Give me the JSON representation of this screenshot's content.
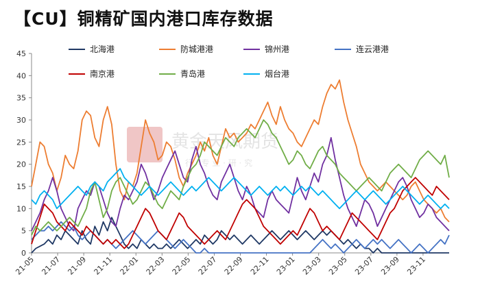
{
  "title": "【CU】铜精矿国内港口库存数据",
  "watermark": {
    "main": "黄金天风期货",
    "sub": "行 · 专 业 · 研 · 究"
  },
  "chart_data": {
    "type": "line",
    "title": "【CU】铜精矿国内港口库存数据",
    "xlabel": "",
    "ylabel": "",
    "ylim": [
      0,
      45
    ],
    "yticks": [
      0,
      5,
      10,
      15,
      20,
      25,
      30,
      35,
      40,
      45
    ],
    "x_tick_labels": [
      "21-05",
      "21-07",
      "21-09",
      "21-11",
      "22-01",
      "22-03",
      "22-05",
      "22-07",
      "22-09",
      "22-11",
      "23-01",
      "23-03",
      "23-05",
      "23-07",
      "23-09",
      "23-11"
    ],
    "x_start": "2021-05",
    "legend_position": "top",
    "grid": false,
    "series": [
      {
        "name": "北海港",
        "color": "#1f3864",
        "values": [
          0,
          1,
          1.5,
          2,
          3,
          2,
          4,
          3,
          5,
          4,
          3,
          2,
          5,
          3,
          2,
          6,
          4,
          7,
          5,
          8,
          6,
          4,
          2,
          1,
          2,
          1,
          3,
          2,
          1,
          2,
          1,
          1,
          2,
          1,
          2,
          3,
          2,
          1,
          2,
          3,
          2,
          4,
          3,
          2,
          3,
          5,
          4,
          3,
          4,
          3,
          2,
          3,
          4,
          3,
          2,
          3,
          4,
          5,
          4,
          3,
          4,
          5,
          4,
          3,
          4,
          5,
          4,
          3,
          4,
          5,
          4,
          5,
          4,
          3,
          2,
          3,
          2,
          1,
          2,
          1,
          1,
          0,
          1,
          0,
          0,
          0,
          0,
          0,
          0,
          0,
          0,
          0,
          0,
          0,
          0,
          0,
          0,
          0,
          0,
          0
        ]
      },
      {
        "name": "防城港港",
        "color": "#ed7d31",
        "values": [
          15,
          20,
          25,
          24,
          20,
          18,
          14,
          17,
          22,
          20,
          19,
          23,
          30,
          32,
          31,
          26,
          24,
          30,
          33,
          29,
          20,
          14,
          12,
          16,
          15,
          18,
          24,
          30,
          27,
          25,
          21,
          22,
          25,
          24,
          21,
          17,
          15,
          18,
          20,
          22,
          25,
          23,
          26,
          22,
          20,
          24,
          28,
          26,
          27,
          25,
          26,
          27,
          29,
          28,
          30,
          32,
          34,
          31,
          29,
          33,
          30,
          28,
          27,
          25,
          24,
          26,
          28,
          30,
          29,
          33,
          36,
          38,
          37,
          39,
          34,
          30,
          27,
          24,
          20,
          18,
          16,
          15,
          14,
          15,
          16,
          15,
          14,
          13,
          12,
          13,
          15,
          16,
          14,
          12,
          11,
          10,
          9,
          10,
          8,
          7
        ]
      },
      {
        "name": "锦州港",
        "color": "#7030a0",
        "values": [
          5,
          7,
          9,
          12,
          14,
          17,
          14,
          10,
          8,
          6,
          5,
          10,
          12,
          14,
          13,
          16,
          15,
          12,
          9,
          7,
          6,
          10,
          13,
          12,
          14,
          16,
          20,
          18,
          15,
          12,
          14,
          17,
          19,
          21,
          23,
          20,
          17,
          16,
          21,
          24,
          20,
          18,
          15,
          13,
          12,
          16,
          18,
          20,
          17,
          14,
          12,
          15,
          13,
          10,
          9,
          8,
          12,
          14,
          12,
          11,
          10,
          9,
          13,
          17,
          14,
          12,
          15,
          18,
          16,
          20,
          22,
          26,
          21,
          17,
          13,
          10,
          8,
          6,
          9,
          12,
          11,
          9,
          6,
          8,
          10,
          12,
          14,
          16,
          17,
          15,
          12,
          10,
          8,
          9,
          11,
          10,
          8,
          7,
          6,
          5
        ]
      },
      {
        "name": "连云港港",
        "color": "#4472c4",
        "values": [
          3,
          4,
          5,
          5,
          6,
          5,
          6,
          7,
          6,
          5,
          6,
          4,
          3,
          4,
          5,
          4,
          3,
          2,
          3,
          2,
          1,
          2,
          3,
          4,
          5,
          4,
          3,
          2,
          3,
          4,
          5,
          4,
          3,
          2,
          1,
          2,
          3,
          2,
          1,
          0,
          0,
          1,
          0,
          0,
          0,
          0,
          0,
          0,
          0,
          0,
          0,
          0,
          0,
          0,
          0,
          0,
          0,
          0,
          0,
          0,
          0,
          0,
          0,
          0,
          0,
          0,
          0,
          1,
          2,
          3,
          2,
          1,
          2,
          1,
          0,
          1,
          2,
          3,
          2,
          1,
          2,
          3,
          2,
          3,
          2,
          1,
          2,
          3,
          2,
          1,
          0,
          1,
          2,
          1,
          0,
          1,
          2,
          3,
          2,
          4
        ]
      },
      {
        "name": "南京港",
        "color": "#c00000",
        "values": [
          2,
          5,
          8,
          11,
          10,
          9,
          7,
          6,
          5,
          7,
          6,
          5,
          4,
          6,
          5,
          4,
          3,
          2,
          3,
          2,
          3,
          2,
          1,
          2,
          4,
          6,
          8,
          10,
          9,
          7,
          5,
          4,
          3,
          5,
          7,
          9,
          8,
          6,
          5,
          4,
          3,
          2,
          3,
          4,
          5,
          4,
          3,
          5,
          7,
          9,
          11,
          12,
          11,
          10,
          8,
          6,
          5,
          4,
          3,
          2,
          3,
          4,
          5,
          4,
          6,
          8,
          10,
          9,
          7,
          5,
          6,
          5,
          4,
          3,
          5,
          7,
          9,
          8,
          7,
          6,
          5,
          4,
          3,
          5,
          7,
          9,
          10,
          12,
          14,
          15,
          16,
          17,
          16,
          15,
          14,
          13,
          15,
          14,
          13,
          12
        ]
      },
      {
        "name": "青岛港",
        "color": "#70ad47",
        "values": [
          4,
          6,
          5,
          6,
          7,
          6,
          5,
          6,
          7,
          8,
          7,
          6,
          8,
          10,
          14,
          16,
          12,
          8,
          10,
          14,
          16,
          17,
          15,
          13,
          11,
          12,
          14,
          16,
          15,
          13,
          11,
          10,
          12,
          14,
          13,
          12,
          15,
          17,
          19,
          20,
          22,
          25,
          24,
          23,
          22,
          24,
          26,
          25,
          24,
          26,
          27,
          28,
          27,
          26,
          28,
          30,
          29,
          27,
          26,
          24,
          22,
          20,
          21,
          23,
          22,
          20,
          19,
          21,
          23,
          24,
          22,
          21,
          20,
          18,
          17,
          16,
          15,
          14,
          15,
          16,
          17,
          16,
          15,
          14,
          16,
          18,
          19,
          20,
          19,
          18,
          17,
          19,
          21,
          22,
          23,
          22,
          21,
          20,
          22,
          17
        ]
      },
      {
        "name": "烟台港",
        "color": "#00b0f0",
        "values": [
          12,
          11,
          13,
          14,
          13,
          12,
          10,
          11,
          12,
          13,
          14,
          15,
          14,
          13,
          15,
          16,
          15,
          14,
          16,
          17,
          18,
          19,
          17,
          16,
          15,
          14,
          13,
          14,
          15,
          14,
          13,
          14,
          15,
          16,
          15,
          14,
          13,
          14,
          15,
          14,
          15,
          16,
          17,
          16,
          15,
          14,
          15,
          16,
          17,
          16,
          15,
          14,
          13,
          14,
          15,
          14,
          13,
          14,
          15,
          14,
          15,
          14,
          13,
          14,
          15,
          14,
          15,
          14,
          13,
          14,
          13,
          12,
          11,
          10,
          11,
          12,
          13,
          14,
          13,
          12,
          13,
          14,
          13,
          12,
          11,
          12,
          13,
          14,
          15,
          14,
          13,
          12,
          11,
          12,
          13,
          12,
          11,
          10,
          11,
          10
        ]
      }
    ]
  }
}
